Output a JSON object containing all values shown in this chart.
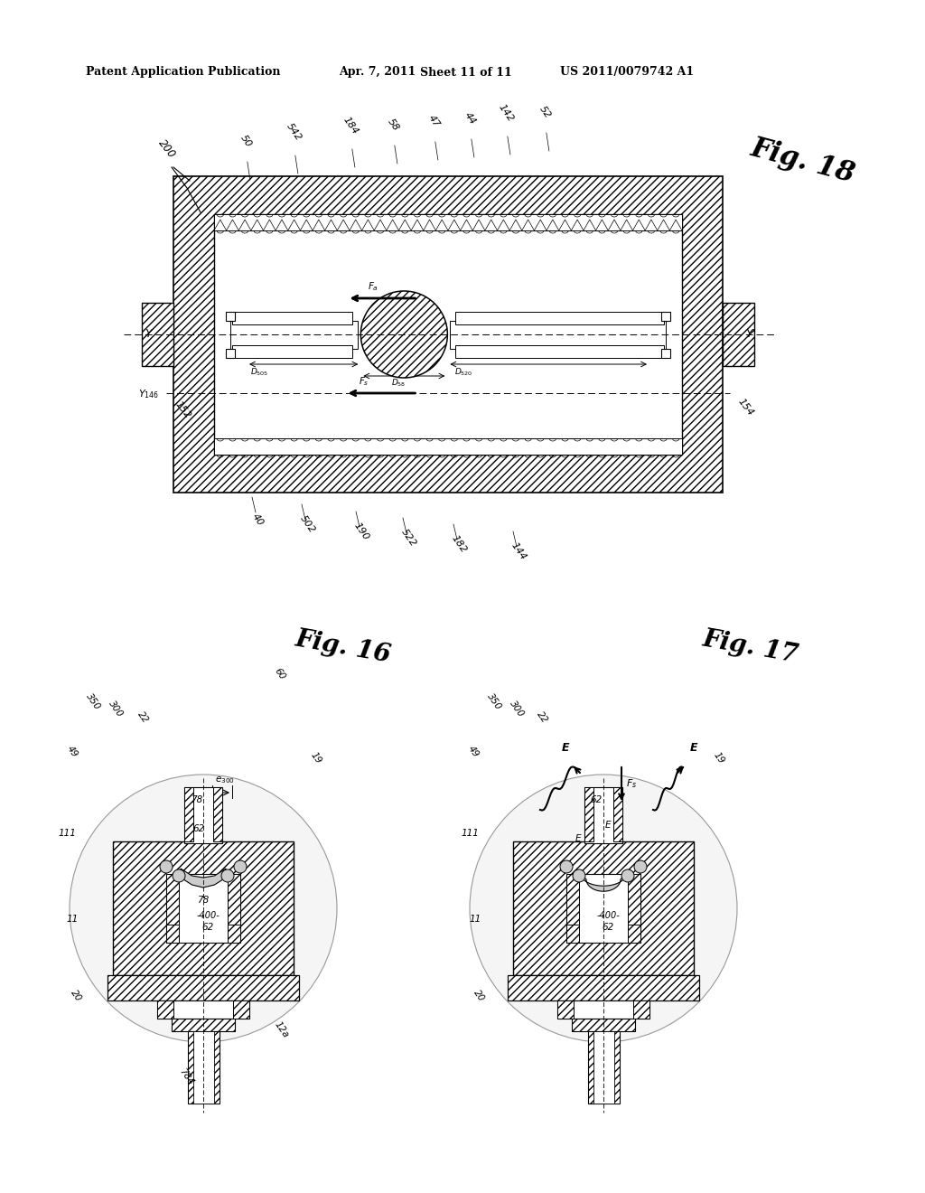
{
  "bg_color": "#ffffff",
  "black": "#000000",
  "header_text": "Patent Application Publication",
  "header_date": "Apr. 7, 2011",
  "header_sheet": "Sheet 11 of 11",
  "header_patent": "US 2011/0079742 A1",
  "fig18_label": "Fig. 18",
  "fig16_label": "Fig. 16",
  "fig17_label": "Fig. 17"
}
